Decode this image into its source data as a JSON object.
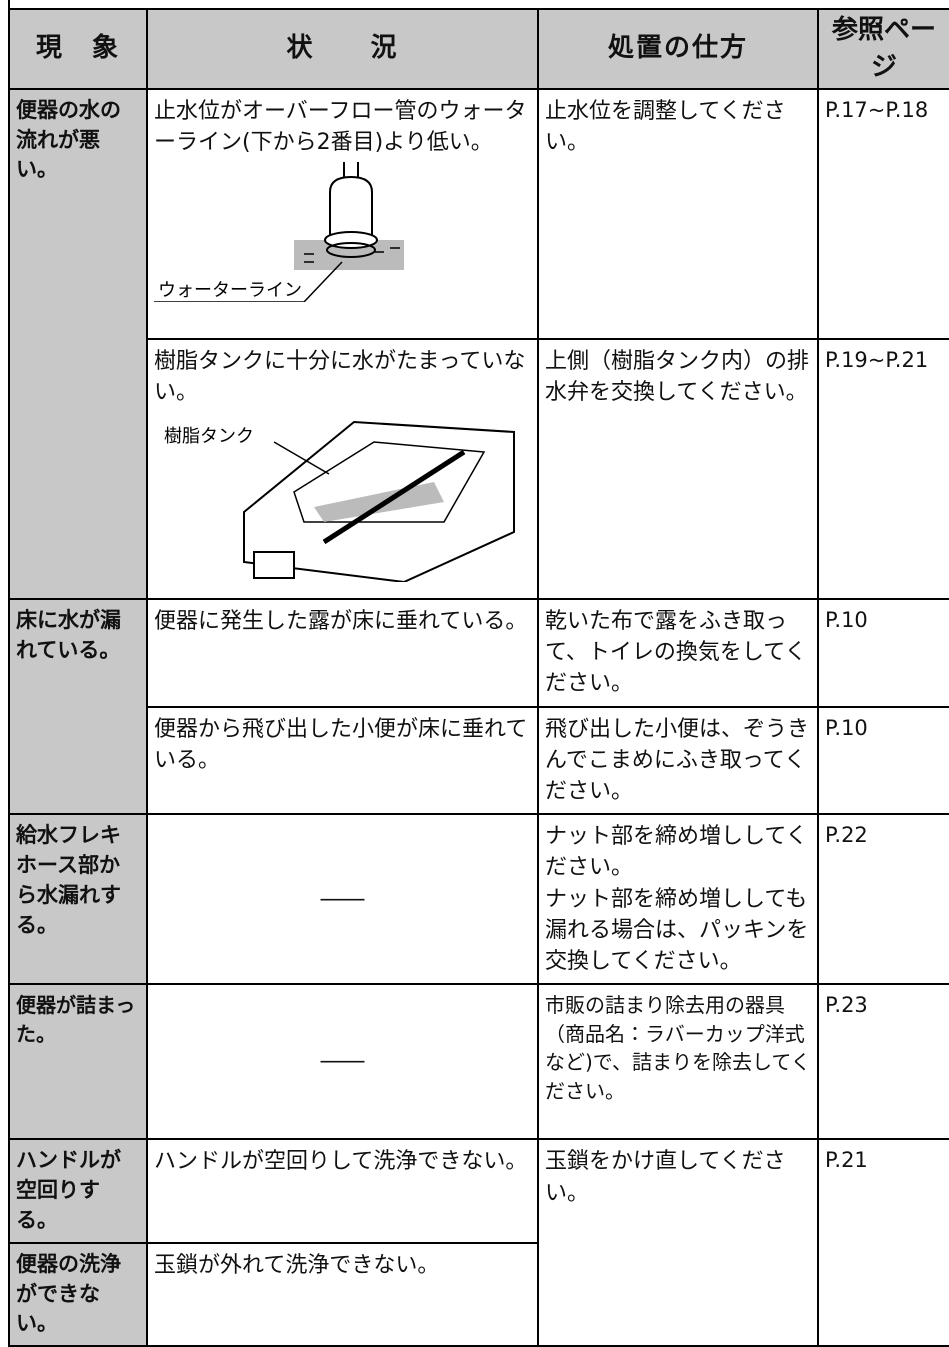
{
  "header": [
    "現　象",
    "状　　況",
    "処置の仕方",
    "参照ページ"
  ],
  "rows": [
    {
      "symptom": "便器の水の流れが悪い。",
      "cases": [
        {
          "situation": "止水位がオーバーフロー管のウォーターライン(下から2番目)より低い。",
          "figure_label": "ウォーターライン",
          "remedy": "止水位を調整してください。",
          "page": "P.17~P.18"
        },
        {
          "situation": "樹脂タンクに十分に水がたまっていない。",
          "figure_label": "樹脂タンク",
          "remedy": "上側（樹脂タンク内）の排水弁を交換してください。",
          "page": "P.19~P.21"
        }
      ]
    },
    {
      "symptom": "床に水が漏れている。",
      "cases": [
        {
          "situation": "便器に発生した露が床に垂れている。",
          "remedy": "乾いた布で露をふき取って、トイレの換気をしてください。",
          "page": "P.10"
        },
        {
          "situation": "便器から飛び出した小便が床に垂れている。",
          "remedy": "飛び出した小便は、ぞうきんでこまめにふき取ってください。",
          "page": "P.10"
        }
      ]
    },
    {
      "symptom": "給水フレキホース部から水漏れする。",
      "cases": [
        {
          "situation": "――",
          "remedy": "ナット部を締め増ししてください。\nナット部を締め増ししても漏れる場合は、パッキンを交換してください。",
          "page": "P.22"
        }
      ]
    },
    {
      "symptom": "便器が詰まった。",
      "cases": [
        {
          "situation": "――",
          "remedy": "市販の詰まり除去用の器具（商品名：ラバーカップ洋式など)で、詰まりを除去してください。",
          "page": "P.23"
        }
      ]
    },
    {
      "symptom": "ハンドルが空回りする。",
      "cases": [
        {
          "situation": "ハンドルが空回りして洗浄できない。",
          "remedy": "玉鎖をかけ直してください。",
          "page": "P.21"
        }
      ]
    },
    {
      "symptom": "便器の洗浄ができない。",
      "cases": [
        {
          "situation": "玉鎖が外れて洗浄できない。"
        }
      ]
    }
  ]
}
